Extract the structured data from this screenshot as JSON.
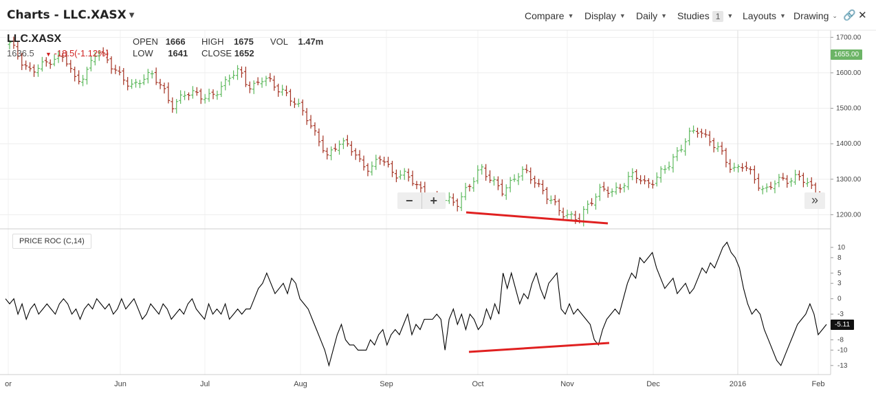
{
  "toolbar": {
    "title": "Charts - LLC.XASX",
    "compare": "Compare",
    "display": "Display",
    "daily": "Daily",
    "studies": "Studies",
    "studies_count": "1",
    "layouts": "Layouts",
    "drawing": "Drawing"
  },
  "quote": {
    "symbol": "LLC.XASX",
    "last": "1636.5",
    "change": "-18.5(-1.12%)",
    "open_label": "OPEN",
    "open": "1666",
    "high_label": "HIGH",
    "high": "1675",
    "vol_label": "VOL",
    "vol": "1.47m",
    "low_label": "LOW",
    "low": "1641",
    "close_label": "CLOSE",
    "close": "1652"
  },
  "colors": {
    "up": "#5cb85c",
    "down": "#a33020",
    "roc_line": "#000000",
    "divergence": "#e02020",
    "price_flag": "#6cb466"
  },
  "study": {
    "label": "PRICE ROC (C,14)",
    "current": "-5.11"
  },
  "price_flag": "1655.00",
  "zoom": {
    "minus": "−",
    "plus": "+"
  },
  "scroll_icon": "»",
  "chart_data": [
    {
      "type": "bar",
      "title": "LLC.XASX",
      "xlabel": "",
      "ylabel": "",
      "ylim": [
        1160,
        1720
      ],
      "yticks": [
        "1700.00",
        "1600.00",
        "1500.00",
        "1400.00",
        "1300.00",
        "1200.00"
      ],
      "months": [
        "or",
        "Jun",
        "Jul",
        "Aug",
        "Sep",
        "Oct",
        "Nov",
        "Dec",
        "2016",
        "Feb"
      ],
      "close_points": [
        [
          "Apr 29",
          1680
        ],
        [
          "May 4",
          1640
        ],
        [
          "May 8",
          1600
        ],
        [
          "May 12",
          1620
        ],
        [
          "May 15",
          1645
        ],
        [
          "May 19",
          1640
        ],
        [
          "May 22",
          1580
        ],
        [
          "May 26",
          1600
        ],
        [
          "May 29",
          1660
        ],
        [
          "Jun 2",
          1640
        ],
        [
          "Jun 5",
          1590
        ],
        [
          "Jun 10",
          1560
        ],
        [
          "Jun 15",
          1585
        ],
        [
          "Jun 19",
          1590
        ],
        [
          "Jun 24",
          1560
        ],
        [
          "Jun 29",
          1500
        ],
        [
          "Jul 3",
          1540
        ],
        [
          "Jul 8",
          1550
        ],
        [
          "Jul 13",
          1520
        ],
        [
          "Jul 17",
          1550
        ],
        [
          "Jul 21",
          1590
        ],
        [
          "Jul 24",
          1600
        ],
        [
          "Jul 28",
          1560
        ],
        [
          "Aug 3",
          1580
        ],
        [
          "Aug 7",
          1570
        ],
        [
          "Aug 12",
          1550
        ],
        [
          "Aug 17",
          1510
        ],
        [
          "Aug 21",
          1490
        ],
        [
          "Aug 25",
          1420
        ],
        [
          "Aug 27",
          1360
        ],
        [
          "Sep 1",
          1410
        ],
        [
          "Sep 4",
          1390
        ],
        [
          "Sep 8",
          1350
        ],
        [
          "Sep 11",
          1330
        ],
        [
          "Sep 14",
          1360
        ],
        [
          "Sep 18",
          1320
        ],
        [
          "Sep 22",
          1310
        ],
        [
          "Sep 25",
          1290
        ],
        [
          "Sep 29",
          1260
        ],
        [
          "Oct 2",
          1230
        ],
        [
          "Oct 5",
          1250
        ],
        [
          "Oct 8",
          1230
        ],
        [
          "Oct 12",
          1280
        ],
        [
          "Oct 15",
          1340
        ],
        [
          "Oct 19",
          1290
        ],
        [
          "Oct 22",
          1270
        ],
        [
          "Oct 26",
          1300
        ],
        [
          "Oct 29",
          1320
        ],
        [
          "Nov 2",
          1300
        ],
        [
          "Nov 5",
          1250
        ],
        [
          "Nov 10",
          1220
        ],
        [
          "Nov 13",
          1200
        ],
        [
          "Nov 16",
          1180
        ],
        [
          "Nov 19",
          1240
        ],
        [
          "Nov 24",
          1270
        ],
        [
          "Nov 27",
          1260
        ],
        [
          "Dec 1",
          1290
        ],
        [
          "Dec 4",
          1310
        ],
        [
          "Dec 9",
          1290
        ],
        [
          "Dec 14",
          1300
        ],
        [
          "Dec 18",
          1330
        ],
        [
          "Dec 22",
          1380
        ],
        [
          "Dec 28",
          1420
        ],
        [
          "Dec 31",
          1440
        ],
        [
          "Jan 5",
          1410
        ],
        [
          "Jan 8",
          1370
        ],
        [
          "Jan 12",
          1330
        ],
        [
          "Jan 15",
          1340
        ],
        [
          "Jan 19",
          1300
        ],
        [
          "Jan 22",
          1270
        ],
        [
          "Jan 27",
          1290
        ],
        [
          "Jan 29",
          1300
        ],
        [
          "Feb 1",
          1310
        ],
        [
          "Feb 3",
          1280
        ],
        [
          "Feb 5",
          1255
        ]
      ]
    },
    {
      "type": "line",
      "title": "PRICE ROC (C,14)",
      "ylim": [
        -14.5,
        12
      ],
      "yticks": [
        10,
        8,
        5,
        3,
        0,
        -3,
        -5,
        -8,
        -10,
        -13
      ],
      "values": [
        0,
        -1,
        0,
        -3,
        -1,
        -4,
        -2,
        -1,
        -3,
        -2,
        -1,
        -2,
        -3,
        -1,
        0,
        -1,
        -3,
        -2,
        -4,
        -2,
        -1,
        -2,
        0,
        -1,
        -2,
        -1,
        -3,
        -2,
        0,
        -2,
        -1,
        0,
        -2,
        -4,
        -3,
        -1,
        -2,
        -3,
        -1,
        -2,
        -4,
        -3,
        -2,
        -3,
        -1,
        0,
        -2,
        -3,
        -4,
        -1,
        -3,
        -2,
        -3,
        -1,
        -4,
        -3,
        -2,
        -3,
        -2,
        -2,
        0,
        2,
        3,
        5,
        3,
        1,
        2,
        3,
        1,
        4,
        3,
        0,
        -1,
        -2,
        -4,
        -6,
        -8,
        -10,
        -13,
        -10,
        -7,
        -5,
        -8,
        -9,
        -9,
        -10,
        -10,
        -10,
        -8,
        -9,
        -7,
        -6,
        -9,
        -7,
        -6,
        -7,
        -5,
        -3,
        -7,
        -5,
        -6,
        -4,
        -4,
        -4,
        -3,
        -4,
        -10,
        -4,
        -2,
        -5,
        -3,
        -6,
        -3,
        -4,
        -6,
        -5,
        -2,
        -4,
        -1,
        -3,
        5,
        2,
        5,
        2,
        -1,
        1,
        0,
        3,
        5,
        2,
        0,
        3,
        4,
        5,
        -2,
        -3,
        -1,
        -3,
        -2,
        -3,
        -4,
        -5,
        -8,
        -9,
        -6,
        -4,
        -3,
        -2,
        -3,
        0,
        3,
        5,
        4,
        8,
        7,
        8,
        9,
        6,
        4,
        2,
        3,
        4,
        1,
        2,
        3,
        1,
        2,
        4,
        6,
        5,
        7,
        6,
        8,
        10,
        11,
        9,
        8,
        6,
        2,
        -1,
        -3,
        -2,
        -3,
        -6,
        -8,
        -10,
        -12,
        -13,
        -11,
        -9,
        -7,
        -5,
        -4,
        -3,
        -1,
        -3,
        -7,
        -6,
        -5
      ],
      "divergence_label": "",
      "current": -5.11
    }
  ]
}
